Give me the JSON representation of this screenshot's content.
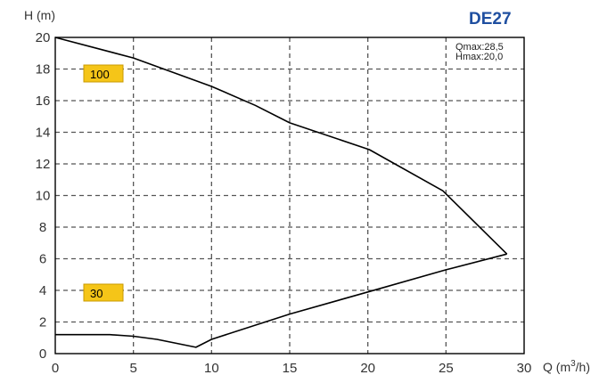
{
  "chart_data": {
    "type": "line",
    "title": "DE27",
    "ylabel": "H (m)",
    "xlabel_prefix": "Q (m",
    "xlabel_sup": "3",
    "xlabel_suffix": "/h)",
    "xlim": [
      0,
      30
    ],
    "ylim": [
      0,
      20
    ],
    "xticks": [
      0,
      5,
      10,
      15,
      20,
      25,
      30
    ],
    "yticks": [
      0,
      2,
      4,
      6,
      8,
      10,
      12,
      14,
      16,
      18,
      20
    ],
    "grid": true,
    "annotation": [
      "Qmax:28,5",
      "Hmax:20,0"
    ],
    "series": [
      {
        "name": "100",
        "x": [
          0,
          5,
          10,
          12.8,
          15,
          20.1,
          24.8,
          28.9
        ],
        "y": [
          20.0,
          18.7,
          16.9,
          15.7,
          14.6,
          12.9,
          10.3,
          6.3
        ]
      },
      {
        "name": "30",
        "x": [
          0,
          3.5,
          5,
          6.5,
          9,
          10,
          15,
          20,
          25,
          28.9
        ],
        "y": [
          1.2,
          1.2,
          1.1,
          0.9,
          0.4,
          0.9,
          2.5,
          3.9,
          5.3,
          6.3
        ]
      }
    ]
  },
  "colors": {
    "title": "#1f4fa0",
    "tag_fill": "#f5c518",
    "tag_stroke": "#c99a00",
    "curve": "#000000",
    "grid": "#555555"
  }
}
